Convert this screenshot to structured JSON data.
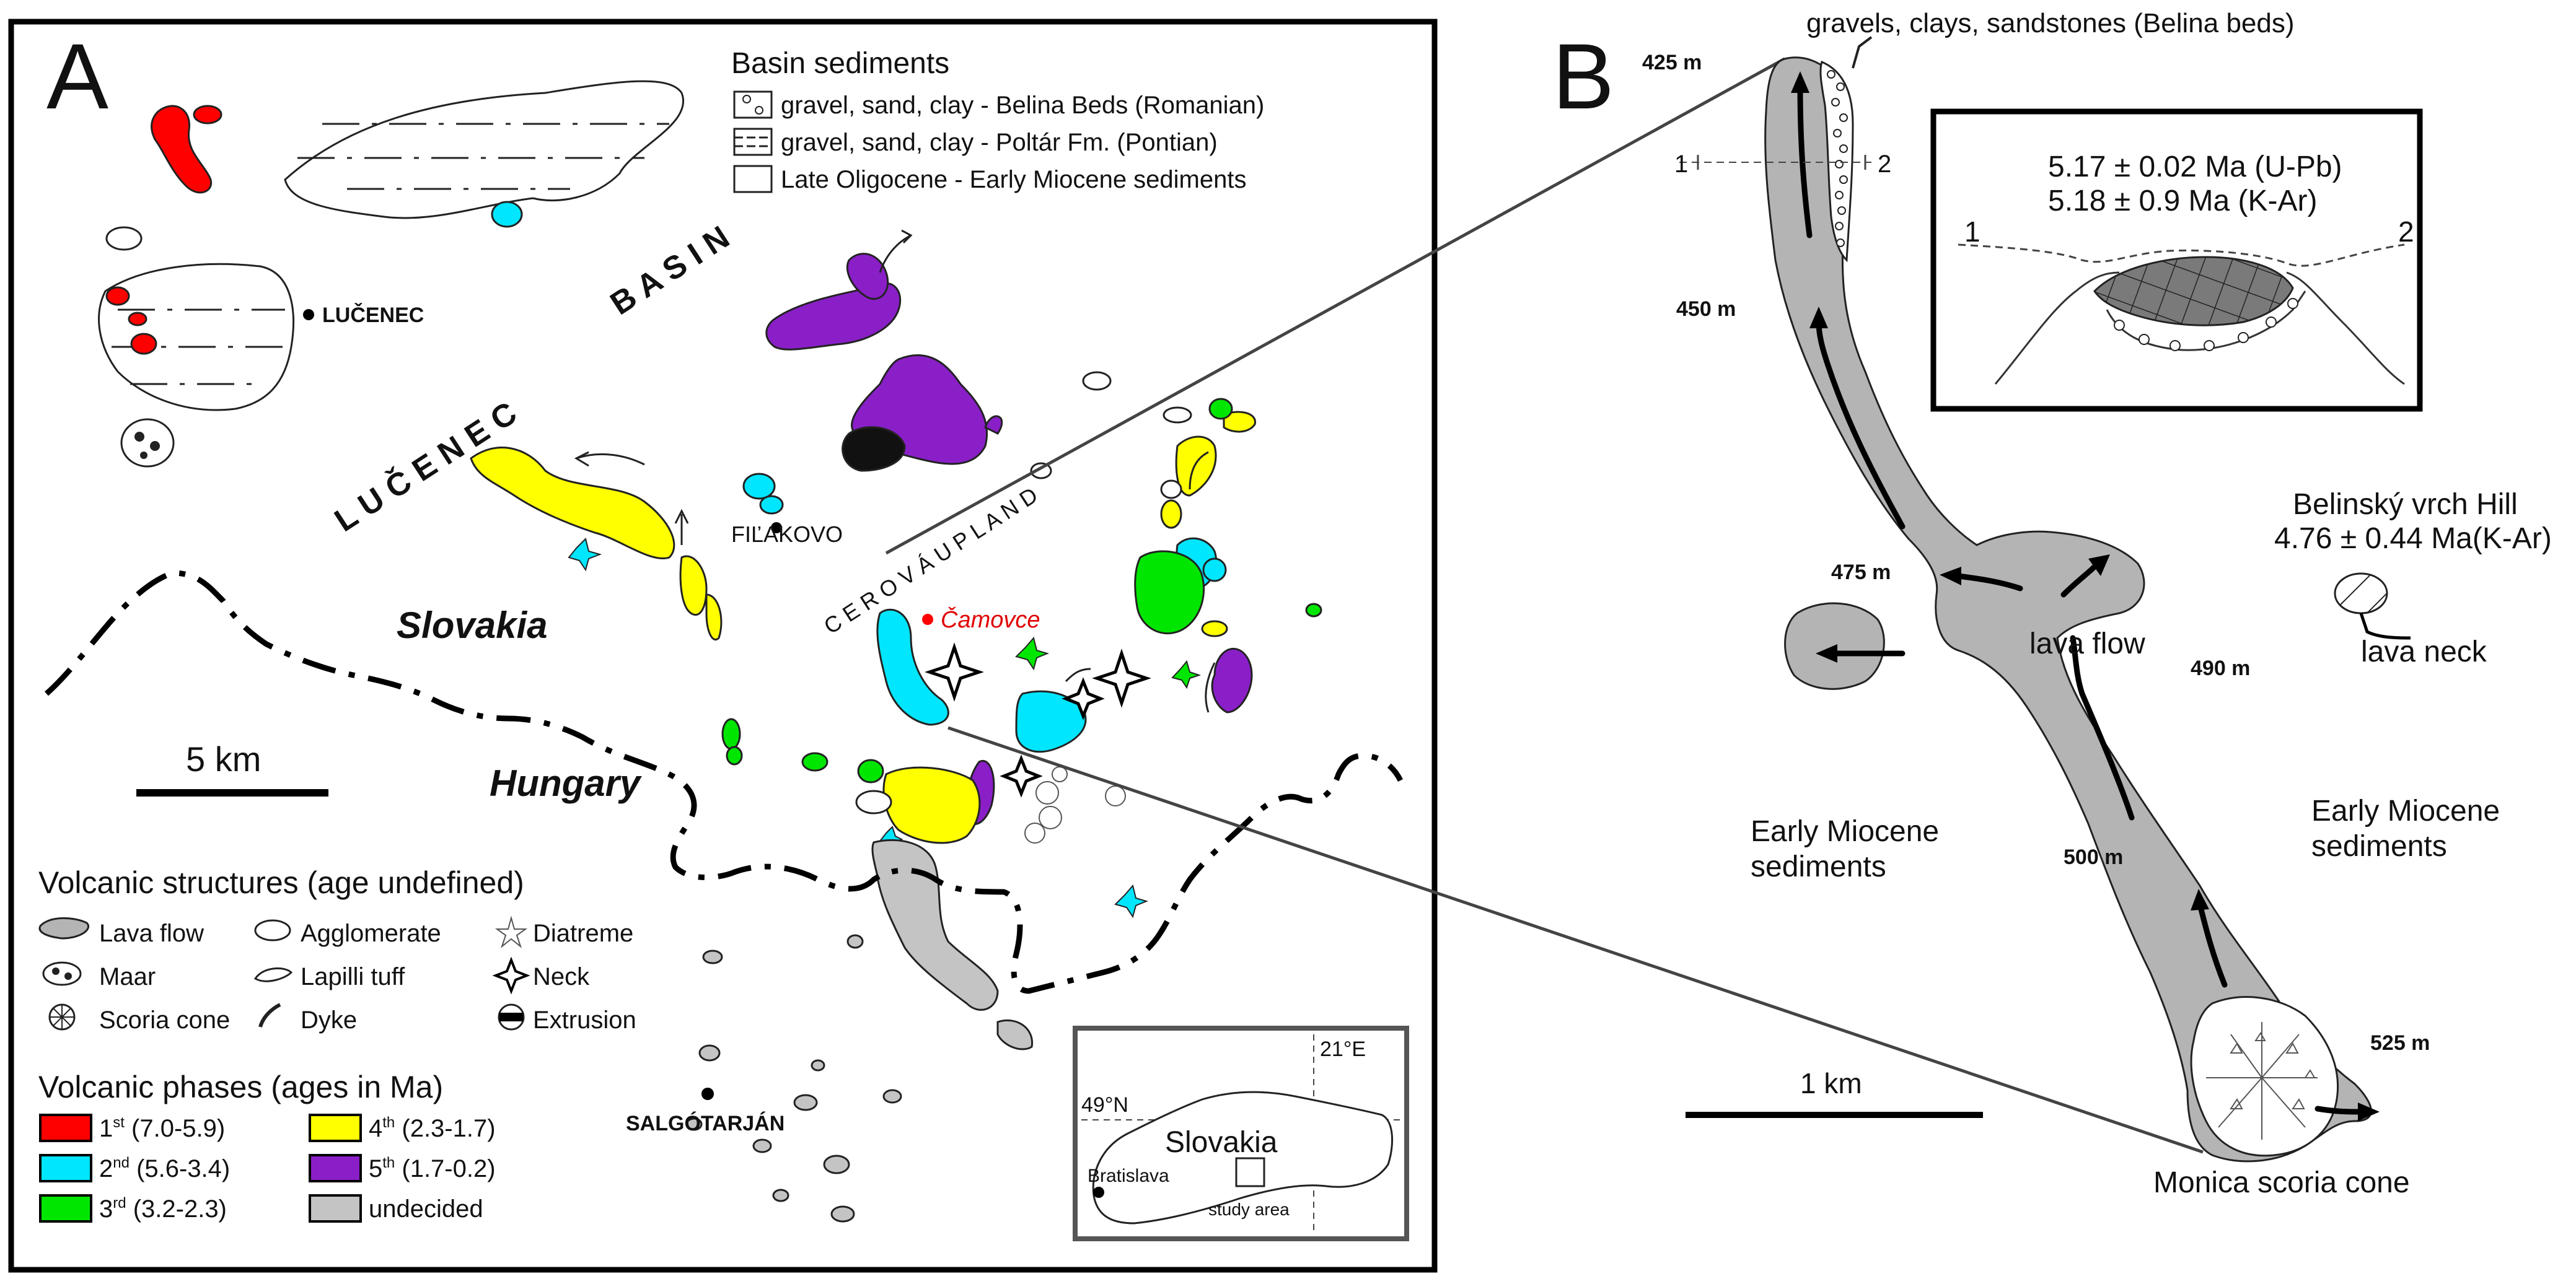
{
  "panel_a": {
    "letter": "A",
    "basin_legend": {
      "title": "Basin sediments",
      "items": [
        "gravel, sand, clay - Belina Beds (Romanian)",
        "gravel, sand, clay - Poltár Fm. (Pontian)",
        "Late Oligocene - Early Miocene sediments"
      ]
    },
    "map_labels": {
      "lucenec": "LUČENEC",
      "basin_word_1": "L U Č E N E C",
      "basin_word_2": "B A S I N",
      "filakovo": "FIĽAKOVO",
      "cerova": "C E R O V Á   U P L A N D",
      "camovce": "Čamovce",
      "slovakia": "Slovakia",
      "hungary": "Hungary",
      "salgotarjan": "SALGÓTARJÁN",
      "scale": "5 km"
    },
    "structures_legend": {
      "title": "Volcanic structures (age undefined)",
      "items": [
        "Lava flow",
        "Agglomerate",
        "Diatreme",
        "Maar",
        "Lapilli tuff",
        "Neck",
        "Scoria cone",
        "Dyke",
        "Extrusion"
      ]
    },
    "phases_legend": {
      "title": "Volcanic phases (ages in Ma)",
      "items": [
        {
          "num": "1",
          "sup": "st",
          "range": " (7.0-5.9)",
          "color": "#ff0000"
        },
        {
          "num": "2",
          "sup": "nd",
          "range": " (5.6-3.4)",
          "color": "#00e6ff"
        },
        {
          "num": "3",
          "sup": "rd",
          "range": " (3.2-2.3)",
          "color": "#00e600"
        },
        {
          "num": "4",
          "sup": "th",
          "range": " (2.3-1.7)",
          "color": "#ffff00"
        },
        {
          "num": "5",
          "sup": "th",
          "range": " (1.7-0.2)",
          "color": "#8a1fc8"
        },
        {
          "num": "",
          "sup": "",
          "range": "undecided",
          "color": "#c4c4c4"
        }
      ]
    },
    "inset": {
      "lon": "21°E",
      "lat": "49°N",
      "country": "Slovakia",
      "capital": "Bratislava",
      "study": "study area"
    }
  },
  "panel_b": {
    "letter": "B",
    "top_label": "gravels, clays, sandstones (Belina beds)",
    "elevations": [
      "425 m",
      "450 m",
      "475 m",
      "490 m",
      "500 m",
      "525 m"
    ],
    "section_marks": [
      "1",
      "2"
    ],
    "inset": {
      "age_1": "5.17 ± 0.02 Ma (U-Pb)",
      "age_2": "5.18 ± 0.9 Ma (K-Ar)",
      "mark_1": "1",
      "mark_2": "2"
    },
    "belinsky": "Belinský vrch Hill",
    "belinsky_age": "4.76 ± 0.44 Ma(K-Ar)",
    "lava_neck": "lava neck",
    "lava_flow": "lava flow",
    "sediments_left_1": "Early Miocene",
    "sediments_left_2": "sediments",
    "sediments_right_1": "Early Miocene",
    "sediments_right_2": "sediments",
    "scale": "1 km",
    "cone": "Monica scoria cone"
  }
}
